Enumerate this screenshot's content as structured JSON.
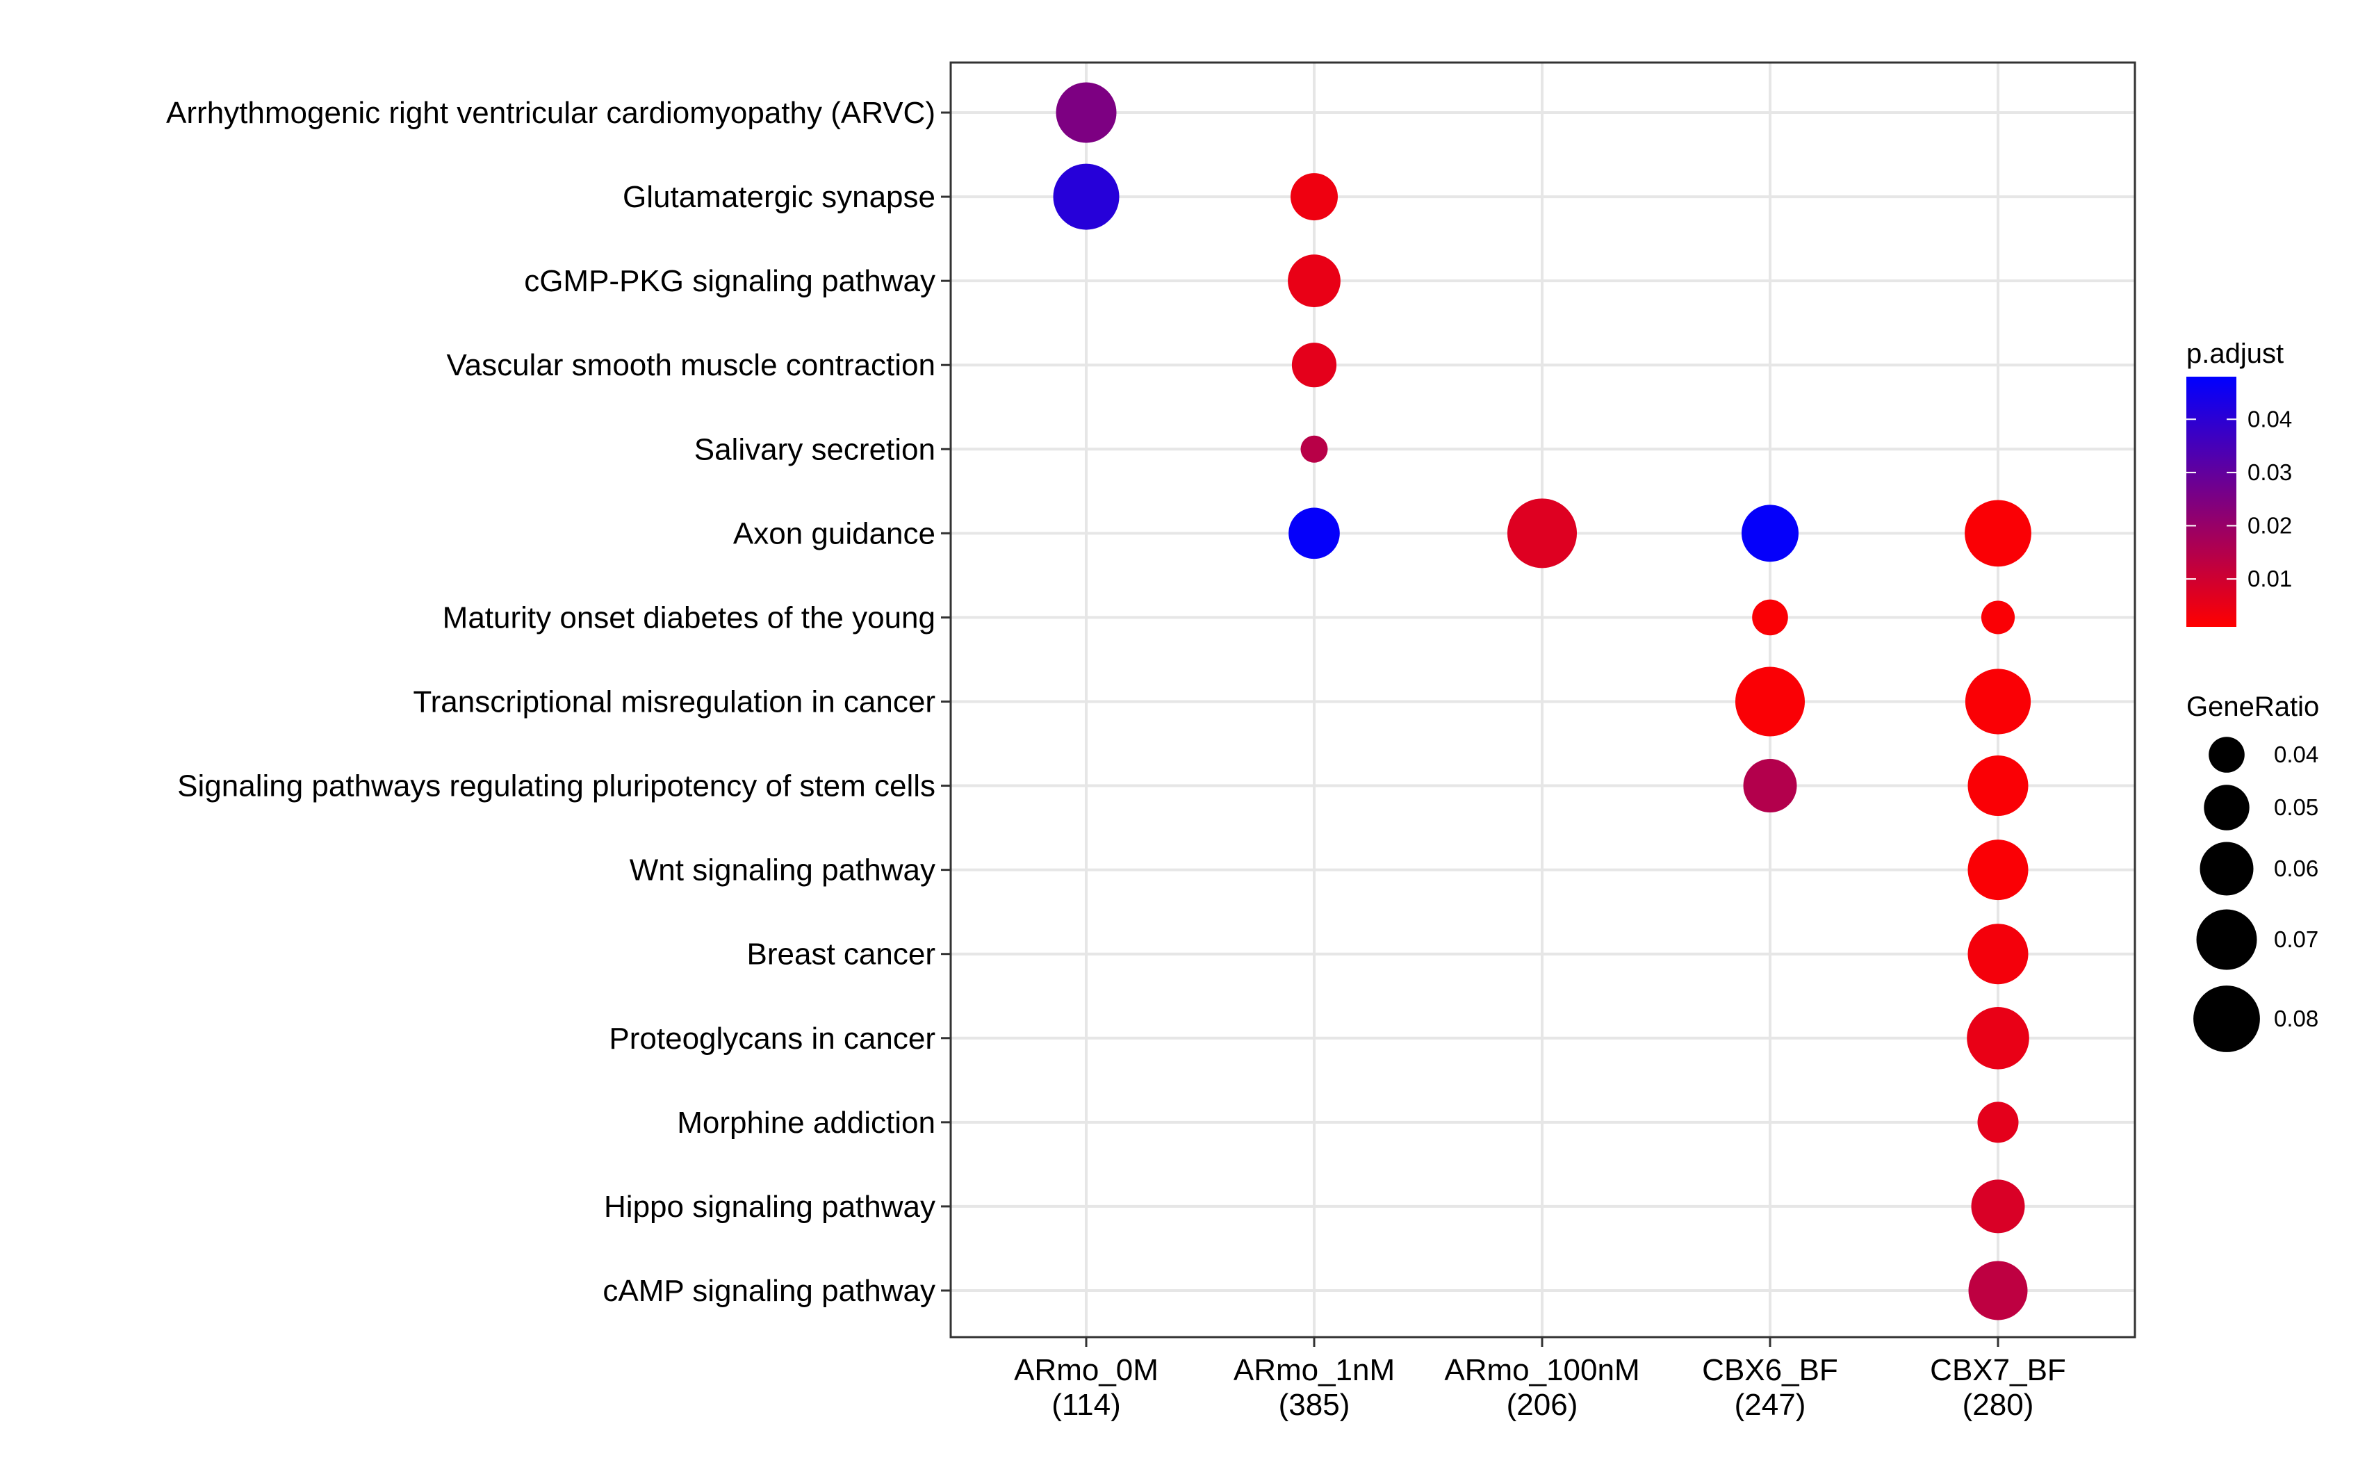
{
  "chart_data": {
    "type": "scatter",
    "title": "",
    "xlabel": "",
    "ylabel": "",
    "categories": [
      {
        "name": "ARmo_0M",
        "count": "(114)"
      },
      {
        "name": "ARmo_1nM",
        "count": "(385)"
      },
      {
        "name": "ARmo_100nM",
        "count": "(206)"
      },
      {
        "name": "CBX6_BF",
        "count": "(247)"
      },
      {
        "name": "CBX7_BF",
        "count": "(280)"
      }
    ],
    "pathways": [
      "Arrhythmogenic right ventricular cardiomyopathy (ARVC)",
      "Glutamatergic synapse",
      "cGMP-PKG signaling pathway",
      "Vascular smooth muscle contraction",
      "Salivary secretion",
      "Axon guidance",
      "Maturity onset diabetes of the young",
      "Transcriptional misregulation in cancer",
      "Signaling pathways regulating pluripotency of stem cells",
      "Wnt signaling pathway",
      "Breast cancer",
      "Proteoglycans in cancer",
      "Morphine addiction",
      "Hippo signaling pathway",
      "cAMP signaling pathway"
    ],
    "points": [
      {
        "category": "ARmo_0M",
        "pathway": "Arrhythmogenic right ventricular cardiomyopathy (ARVC)",
        "gene_ratio": 0.07,
        "p_adjust": 0.025
      },
      {
        "category": "ARmo_0M",
        "pathway": "Glutamatergic synapse",
        "gene_ratio": 0.079,
        "p_adjust": 0.041
      },
      {
        "category": "ARmo_1nM",
        "pathway": "Glutamatergic synapse",
        "gene_ratio": 0.052,
        "p_adjust": 0.004
      },
      {
        "category": "ARmo_1nM",
        "pathway": "cGMP-PKG signaling pathway",
        "gene_ratio": 0.059,
        "p_adjust": 0.005
      },
      {
        "category": "ARmo_1nM",
        "pathway": "Vascular smooth muscle contraction",
        "gene_ratio": 0.049,
        "p_adjust": 0.006
      },
      {
        "category": "ARmo_1nM",
        "pathway": "Salivary secretion",
        "gene_ratio": 0.033,
        "p_adjust": 0.014
      },
      {
        "category": "ARmo_1nM",
        "pathway": "Axon guidance",
        "gene_ratio": 0.057,
        "p_adjust": 0.047
      },
      {
        "category": "ARmo_100nM",
        "pathway": "Axon guidance",
        "gene_ratio": 0.085,
        "p_adjust": 0.007
      },
      {
        "category": "CBX6_BF",
        "pathway": "Axon guidance",
        "gene_ratio": 0.065,
        "p_adjust": 0.047
      },
      {
        "category": "CBX6_BF",
        "pathway": "Maturity onset diabetes of the young",
        "gene_ratio": 0.04,
        "p_adjust": 0.002
      },
      {
        "category": "CBX6_BF",
        "pathway": "Transcriptional misregulation in cancer",
        "gene_ratio": 0.085,
        "p_adjust": 0.002
      },
      {
        "category": "CBX6_BF",
        "pathway": "Signaling pathways regulating pluripotency of stem cells",
        "gene_ratio": 0.06,
        "p_adjust": 0.015
      },
      {
        "category": "CBX7_BF",
        "pathway": "Axon guidance",
        "gene_ratio": 0.08,
        "p_adjust": 0.002
      },
      {
        "category": "CBX7_BF",
        "pathway": "Maturity onset diabetes of the young",
        "gene_ratio": 0.038,
        "p_adjust": 0.002
      },
      {
        "category": "CBX7_BF",
        "pathway": "Transcriptional misregulation in cancer",
        "gene_ratio": 0.078,
        "p_adjust": 0.002
      },
      {
        "category": "CBX7_BF",
        "pathway": "Signaling pathways regulating pluripotency of stem cells",
        "gene_ratio": 0.07,
        "p_adjust": 0.002
      },
      {
        "category": "CBX7_BF",
        "pathway": "Wnt signaling pathway",
        "gene_ratio": 0.07,
        "p_adjust": 0.002
      },
      {
        "category": "CBX7_BF",
        "pathway": "Breast cancer",
        "gene_ratio": 0.07,
        "p_adjust": 0.003
      },
      {
        "category": "CBX7_BF",
        "pathway": "Proteoglycans in cancer",
        "gene_ratio": 0.073,
        "p_adjust": 0.005
      },
      {
        "category": "CBX7_BF",
        "pathway": "Morphine addiction",
        "gene_ratio": 0.045,
        "p_adjust": 0.006
      },
      {
        "category": "CBX7_BF",
        "pathway": "Hippo signaling pathway",
        "gene_ratio": 0.06,
        "p_adjust": 0.008
      },
      {
        "category": "CBX7_BF",
        "pathway": "cAMP signaling pathway",
        "gene_ratio": 0.068,
        "p_adjust": 0.013
      }
    ],
    "color_scale": {
      "title": "p.adjust",
      "low_color": "#ff0000",
      "high_color": "#0000ff",
      "range": [
        0.001,
        0.048
      ],
      "ticks": [
        0.01,
        0.02,
        0.03,
        0.04
      ],
      "tick_labels": [
        "0.01",
        "0.02",
        "0.03",
        "0.04"
      ]
    },
    "size_scale": {
      "title": "GeneRatio",
      "range": [
        0.03,
        0.085
      ],
      "ticks": [
        0.04,
        0.05,
        0.06,
        0.07,
        0.08
      ],
      "tick_labels": [
        "0.04",
        "0.05",
        "0.06",
        "0.07",
        "0.08"
      ]
    },
    "grid": true,
    "legend_position": "right",
    "colors": {
      "grid": "#e6e6e6",
      "panel_border": "#333333"
    }
  }
}
